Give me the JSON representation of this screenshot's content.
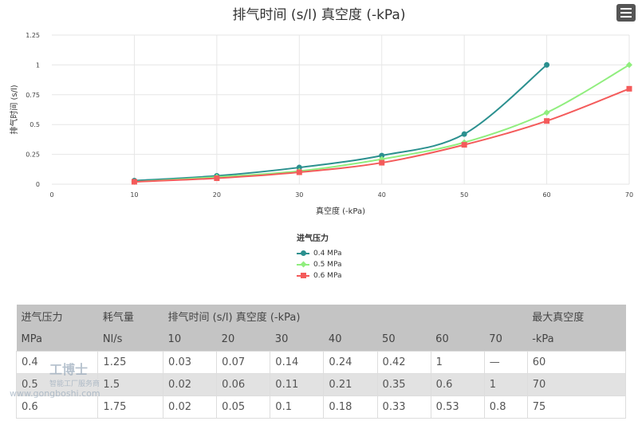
{
  "chart_data": {
    "type": "line",
    "title": "排气时间 (s/l) 真空度 (-kPa)",
    "xlabel": "真空度 (-kPa)",
    "ylabel": "排气时间 (s/l)",
    "xlim": [
      0,
      70
    ],
    "ylim": [
      0,
      1.25
    ],
    "xticks": [
      "0",
      "10",
      "20",
      "30",
      "40",
      "50",
      "60",
      "70"
    ],
    "yticks": [
      "0",
      "0.25",
      "0.5",
      "0.75",
      "1",
      "1.25"
    ],
    "grid": true,
    "legend": {
      "title": "进气压力",
      "placement": "bottom-center"
    },
    "x": [
      10,
      20,
      30,
      40,
      50,
      60,
      70
    ],
    "series": [
      {
        "name": "0.4 MPa",
        "color": "#2b908f",
        "marker": "circle",
        "values": [
          0.03,
          0.07,
          0.14,
          0.24,
          0.42,
          1,
          null
        ]
      },
      {
        "name": "0.5 MPa",
        "color": "#90ee7e",
        "marker": "diamond",
        "values": [
          0.02,
          0.06,
          0.11,
          0.21,
          0.35,
          0.6,
          1
        ]
      },
      {
        "name": "0.6 MPa",
        "color": "#f45b5b",
        "marker": "square",
        "values": [
          0.02,
          0.05,
          0.1,
          0.18,
          0.33,
          0.53,
          0.8
        ]
      }
    ]
  },
  "menu_icon": "hamburger-icon",
  "table": {
    "header1": [
      "进气压力",
      "耗气量",
      "排气时间 (s/l) 真空度 (-kPa)",
      "最大真空度"
    ],
    "header2": [
      "MPa",
      "Nl/s",
      "10",
      "20",
      "30",
      "40",
      "50",
      "60",
      "70",
      "-kPa"
    ],
    "rows": [
      [
        "0.4",
        "1.25",
        "0.03",
        "0.07",
        "0.14",
        "0.24",
        "0.42",
        "1",
        "—",
        "60"
      ],
      [
        "0.5",
        "1.5",
        "0.02",
        "0.06",
        "0.11",
        "0.21",
        "0.35",
        "0.6",
        "1",
        "70"
      ],
      [
        "0.6",
        "1.75",
        "0.02",
        "0.05",
        "0.1",
        "0.18",
        "0.33",
        "0.53",
        "0.8",
        "75"
      ]
    ]
  },
  "watermark": {
    "name": "工博士",
    "tagline": "智能工厂服务商",
    "url": "www.gongboshi.com"
  }
}
